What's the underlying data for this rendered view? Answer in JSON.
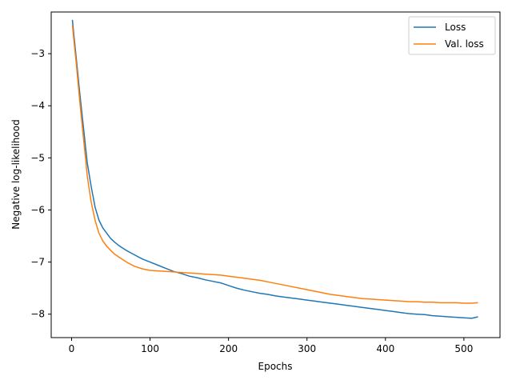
{
  "chart_data": {
    "type": "line",
    "xlabel": "Epochs",
    "ylabel": "Negative log-likelihood",
    "xlim": [
      -26,
      546
    ],
    "ylim": [
      -8.45,
      -2.2
    ],
    "xticks": [
      0,
      100,
      200,
      300,
      400,
      500
    ],
    "yticks": [
      -3,
      -4,
      -5,
      -6,
      -7,
      -8
    ],
    "grid": false,
    "legend": "upper-right",
    "series": [
      {
        "name": "Loss",
        "color": "#1f77b4",
        "x": [
          1,
          3,
          6,
          10,
          15,
          20,
          25,
          30,
          35,
          40,
          45,
          50,
          55,
          60,
          70,
          80,
          90,
          100,
          110,
          120,
          130,
          140,
          150,
          160,
          170,
          180,
          190,
          200,
          210,
          220,
          230,
          240,
          250,
          260,
          270,
          280,
          290,
          300,
          310,
          320,
          330,
          340,
          350,
          360,
          370,
          380,
          390,
          400,
          410,
          420,
          430,
          440,
          450,
          460,
          470,
          480,
          490,
          500,
          510,
          518
        ],
        "y": [
          -2.35,
          -2.65,
          -3.1,
          -3.7,
          -4.4,
          -5.1,
          -5.55,
          -5.95,
          -6.2,
          -6.35,
          -6.45,
          -6.55,
          -6.62,
          -6.68,
          -6.78,
          -6.86,
          -6.94,
          -7.0,
          -7.06,
          -7.12,
          -7.18,
          -7.22,
          -7.27,
          -7.3,
          -7.34,
          -7.37,
          -7.4,
          -7.45,
          -7.5,
          -7.54,
          -7.57,
          -7.6,
          -7.62,
          -7.65,
          -7.67,
          -7.69,
          -7.71,
          -7.73,
          -7.75,
          -7.77,
          -7.79,
          -7.81,
          -7.83,
          -7.85,
          -7.87,
          -7.89,
          -7.91,
          -7.93,
          -7.95,
          -7.97,
          -7.99,
          -8.0,
          -8.01,
          -8.03,
          -8.04,
          -8.05,
          -8.06,
          -8.07,
          -8.08,
          -8.05
        ]
      },
      {
        "name": "Val. loss",
        "color": "#ff7f0e",
        "x": [
          1,
          3,
          6,
          10,
          15,
          20,
          25,
          30,
          35,
          40,
          45,
          50,
          55,
          60,
          70,
          80,
          90,
          100,
          110,
          120,
          130,
          140,
          150,
          160,
          170,
          180,
          190,
          200,
          210,
          220,
          230,
          240,
          250,
          260,
          270,
          280,
          290,
          300,
          310,
          320,
          330,
          340,
          350,
          360,
          370,
          380,
          390,
          400,
          410,
          420,
          430,
          440,
          450,
          460,
          470,
          480,
          490,
          500,
          510,
          518
        ],
        "y": [
          -2.45,
          -2.75,
          -3.2,
          -3.85,
          -4.6,
          -5.35,
          -5.85,
          -6.2,
          -6.45,
          -6.6,
          -6.7,
          -6.78,
          -6.85,
          -6.9,
          -7.0,
          -7.08,
          -7.13,
          -7.16,
          -7.17,
          -7.18,
          -7.19,
          -7.2,
          -7.21,
          -7.22,
          -7.23,
          -7.24,
          -7.25,
          -7.27,
          -7.29,
          -7.31,
          -7.33,
          -7.35,
          -7.38,
          -7.41,
          -7.44,
          -7.47,
          -7.5,
          -7.53,
          -7.56,
          -7.59,
          -7.62,
          -7.64,
          -7.66,
          -7.68,
          -7.7,
          -7.71,
          -7.72,
          -7.73,
          -7.74,
          -7.75,
          -7.76,
          -7.76,
          -7.77,
          -7.77,
          -7.78,
          -7.78,
          -7.78,
          -7.79,
          -7.79,
          -7.78
        ]
      }
    ]
  }
}
